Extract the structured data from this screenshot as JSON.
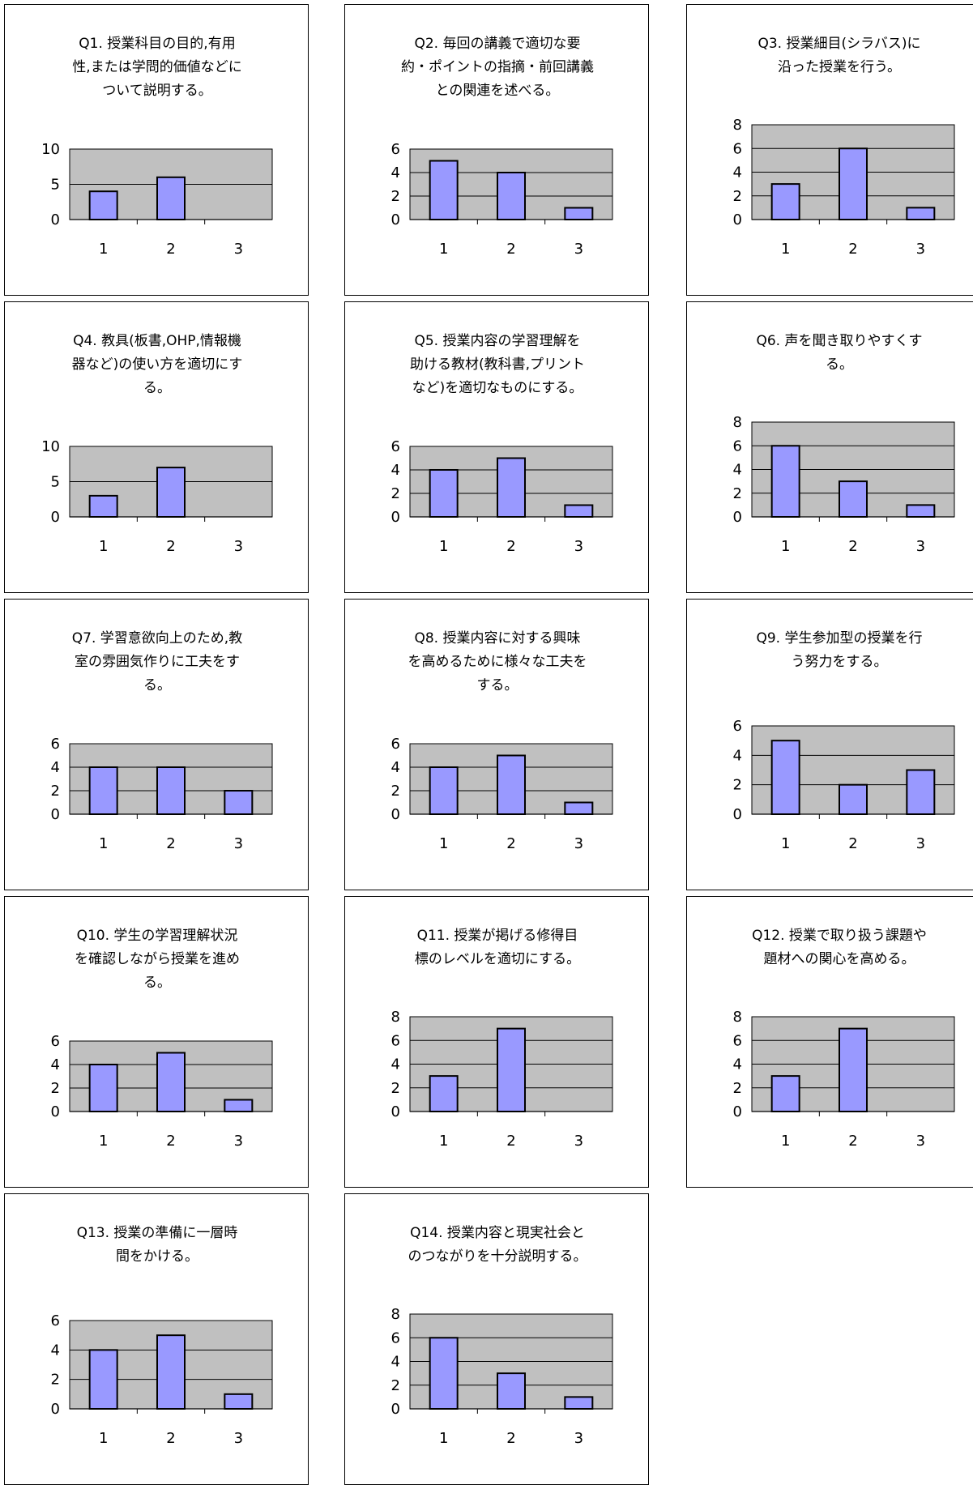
{
  "colors": {
    "plot_background": "#c0c0c0",
    "bar_fill": "#9999ff",
    "bar_stroke": "#000000",
    "gridline": "#000000"
  },
  "chart_data": [
    {
      "type": "bar",
      "title": "Q1. 授業科目の目的,有用\n性,または学問的価値などに\nついて説明する。",
      "categories": [
        "1",
        "2",
        "3"
      ],
      "values": [
        4,
        6,
        0
      ],
      "ylim": [
        0,
        10
      ],
      "yticks": [
        0,
        5,
        10
      ],
      "grid": true,
      "xlabel": "",
      "ylabel": ""
    },
    {
      "type": "bar",
      "title": "Q2. 毎回の講義で適切な要\n約・ポイントの指摘・前回講義\nとの関連を述べる。",
      "categories": [
        "1",
        "2",
        "3"
      ],
      "values": [
        5,
        4,
        1
      ],
      "ylim": [
        0,
        6
      ],
      "yticks": [
        0,
        2,
        4,
        6
      ],
      "grid": true,
      "xlabel": "",
      "ylabel": ""
    },
    {
      "type": "bar",
      "title": "Q3. 授業細目(シラバス)に\n沿った授業を行う。",
      "categories": [
        "1",
        "2",
        "3"
      ],
      "values": [
        3,
        6,
        1
      ],
      "ylim": [
        0,
        8
      ],
      "yticks": [
        0,
        2,
        4,
        6,
        8
      ],
      "grid": true,
      "xlabel": "",
      "ylabel": ""
    },
    {
      "type": "bar",
      "title": "Q4. 教具(板書,OHP,情報機\n器など)の使い方を適切にす\nる。",
      "categories": [
        "1",
        "2",
        "3"
      ],
      "values": [
        3,
        7,
        0
      ],
      "ylim": [
        0,
        10
      ],
      "yticks": [
        0,
        5,
        10
      ],
      "grid": true,
      "xlabel": "",
      "ylabel": ""
    },
    {
      "type": "bar",
      "title": "Q5. 授業内容の学習理解を\n助ける教材(教科書,プリント\nなど)を適切なものにする。",
      "categories": [
        "1",
        "2",
        "3"
      ],
      "values": [
        4,
        5,
        1
      ],
      "ylim": [
        0,
        6
      ],
      "yticks": [
        0,
        2,
        4,
        6
      ],
      "grid": true,
      "xlabel": "",
      "ylabel": ""
    },
    {
      "type": "bar",
      "title": "Q6. 声を聞き取りやすくす\nる。",
      "categories": [
        "1",
        "2",
        "3"
      ],
      "values": [
        6,
        3,
        1
      ],
      "ylim": [
        0,
        8
      ],
      "yticks": [
        0,
        2,
        4,
        6,
        8
      ],
      "grid": true,
      "xlabel": "",
      "ylabel": ""
    },
    {
      "type": "bar",
      "title": "Q7. 学習意欲向上のため,教\n室の雰囲気作りに工夫をす\nる。",
      "categories": [
        "1",
        "2",
        "3"
      ],
      "values": [
        4,
        4,
        2
      ],
      "ylim": [
        0,
        6
      ],
      "yticks": [
        0,
        2,
        4,
        6
      ],
      "grid": true,
      "xlabel": "",
      "ylabel": ""
    },
    {
      "type": "bar",
      "title": "Q8. 授業内容に対する興味\nを高めるために様々な工夫を\nする。",
      "categories": [
        "1",
        "2",
        "3"
      ],
      "values": [
        4,
        5,
        1
      ],
      "ylim": [
        0,
        6
      ],
      "yticks": [
        0,
        2,
        4,
        6
      ],
      "grid": true,
      "xlabel": "",
      "ylabel": ""
    },
    {
      "type": "bar",
      "title": "Q9. 学生参加型の授業を行\nう努力をする。",
      "categories": [
        "1",
        "2",
        "3"
      ],
      "values": [
        5,
        2,
        3
      ],
      "ylim": [
        0,
        6
      ],
      "yticks": [
        0,
        2,
        4,
        6
      ],
      "grid": true,
      "xlabel": "",
      "ylabel": ""
    },
    {
      "type": "bar",
      "title": "Q10. 学生の学習理解状況\nを確認しながら授業を進め\nる。",
      "categories": [
        "1",
        "2",
        "3"
      ],
      "values": [
        4,
        5,
        1
      ],
      "ylim": [
        0,
        6
      ],
      "yticks": [
        0,
        2,
        4,
        6
      ],
      "grid": true,
      "xlabel": "",
      "ylabel": ""
    },
    {
      "type": "bar",
      "title": "Q11. 授業が掲げる修得目\n標のレベルを適切にする。",
      "categories": [
        "1",
        "2",
        "3"
      ],
      "values": [
        3,
        7,
        0
      ],
      "ylim": [
        0,
        8
      ],
      "yticks": [
        0,
        2,
        4,
        6,
        8
      ],
      "grid": true,
      "xlabel": "",
      "ylabel": ""
    },
    {
      "type": "bar",
      "title": "Q12. 授業で取り扱う課題や\n題材への関心を高める。",
      "categories": [
        "1",
        "2",
        "3"
      ],
      "values": [
        3,
        7,
        0
      ],
      "ylim": [
        0,
        8
      ],
      "yticks": [
        0,
        2,
        4,
        6,
        8
      ],
      "grid": true,
      "xlabel": "",
      "ylabel": ""
    },
    {
      "type": "bar",
      "title": "Q13. 授業の準備に一層時\n間をかける。",
      "categories": [
        "1",
        "2",
        "3"
      ],
      "values": [
        4,
        5,
        1
      ],
      "ylim": [
        0,
        6
      ],
      "yticks": [
        0,
        2,
        4,
        6
      ],
      "grid": true,
      "xlabel": "",
      "ylabel": ""
    },
    {
      "type": "bar",
      "title": "Q14. 授業内容と現実社会と\nのつながりを十分説明する。",
      "categories": [
        "1",
        "2",
        "3"
      ],
      "values": [
        6,
        3,
        1
      ],
      "ylim": [
        0,
        8
      ],
      "yticks": [
        0,
        2,
        4,
        6,
        8
      ],
      "grid": true,
      "xlabel": "",
      "ylabel": ""
    }
  ]
}
